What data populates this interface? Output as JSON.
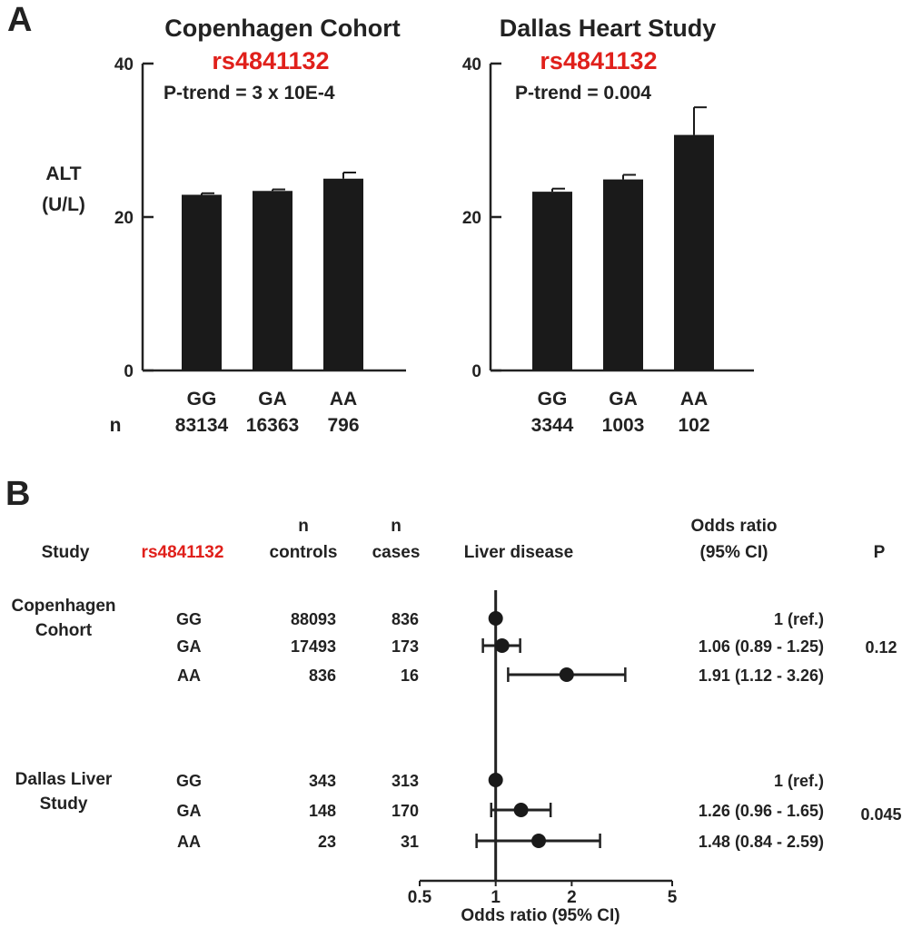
{
  "panel_a_label": "A",
  "panel_b_label": "B",
  "colors": {
    "bar": "#1a1a1a",
    "axis": "#222222",
    "snp_text": "#e0201b",
    "background": "#ffffff"
  },
  "chart_data": [
    {
      "type": "bar",
      "title": "Copenhagen Cohort",
      "snp": "rs4841132",
      "p_trend": "P-trend = 3 x 10E-4",
      "ylabel_line1": "ALT",
      "ylabel_line2": "(U/L)",
      "n_label": "n",
      "categories": [
        "GG",
        "GA",
        "AA"
      ],
      "n_values": [
        "83134",
        "16363",
        "796"
      ],
      "values": [
        22.9,
        23.4,
        25.0
      ],
      "error": [
        0.2,
        0.2,
        0.8
      ],
      "ylim": [
        0,
        40
      ],
      "yticks": [
        "0",
        "20",
        "40"
      ]
    },
    {
      "type": "bar",
      "title": "Dallas Heart Study",
      "snp": "rs4841132",
      "p_trend": "P-trend = 0.004",
      "categories": [
        "GG",
        "GA",
        "AA"
      ],
      "n_values": [
        "3344",
        "1003",
        "102"
      ],
      "values": [
        23.3,
        24.9,
        30.7
      ],
      "error": [
        0.4,
        0.6,
        3.6
      ],
      "ylim": [
        0,
        40
      ],
      "yticks": [
        "0",
        "20",
        "40"
      ]
    },
    {
      "type": "scatter",
      "subtype": "forest",
      "scale": "log",
      "headers": {
        "study": "Study",
        "snp": "rs4841132",
        "n_controls_1": "n",
        "n_controls_2": "controls",
        "n_cases_1": "n",
        "n_cases_2": "cases",
        "outcome": "Liver disease",
        "or_1": "Odds ratio",
        "or_2": "(95% CI)",
        "p": "P"
      },
      "groups": [
        {
          "name_line1": "Copenhagen",
          "name_line2": "Cohort",
          "p": "0.12",
          "rows": [
            {
              "genotype": "GG",
              "controls": "88093",
              "cases": "836",
              "or": 1.0,
              "lo": 1.0,
              "hi": 1.0,
              "or_text": "1 (ref.)"
            },
            {
              "genotype": "GA",
              "controls": "17493",
              "cases": "173",
              "or": 1.06,
              "lo": 0.89,
              "hi": 1.25,
              "or_text": "1.06 (0.89 - 1.25)"
            },
            {
              "genotype": "AA",
              "controls": "836",
              "cases": "16",
              "or": 1.91,
              "lo": 1.12,
              "hi": 3.26,
              "or_text": "1.91 (1.12 - 3.26)"
            }
          ]
        },
        {
          "name_line1": "Dallas Liver",
          "name_line2": "Study",
          "p": "0.045",
          "rows": [
            {
              "genotype": "GG",
              "controls": "343",
              "cases": "313",
              "or": 1.0,
              "lo": 1.0,
              "hi": 1.0,
              "or_text": "1 (ref.)"
            },
            {
              "genotype": "GA",
              "controls": "148",
              "cases": "170",
              "or": 1.26,
              "lo": 0.96,
              "hi": 1.65,
              "or_text": "1.26 (0.96 - 1.65)"
            },
            {
              "genotype": "AA",
              "controls": "23",
              "cases": "31",
              "or": 1.48,
              "lo": 0.84,
              "hi": 2.59,
              "or_text": "1.48 (0.84 - 2.59)"
            }
          ]
        }
      ],
      "xticks": [
        0.5,
        1,
        2,
        5
      ],
      "xtick_labels": [
        "0.5",
        "1",
        "2",
        "5"
      ],
      "xlim": [
        0.5,
        5
      ],
      "xlabel": "Odds ratio (95% CI)"
    }
  ]
}
